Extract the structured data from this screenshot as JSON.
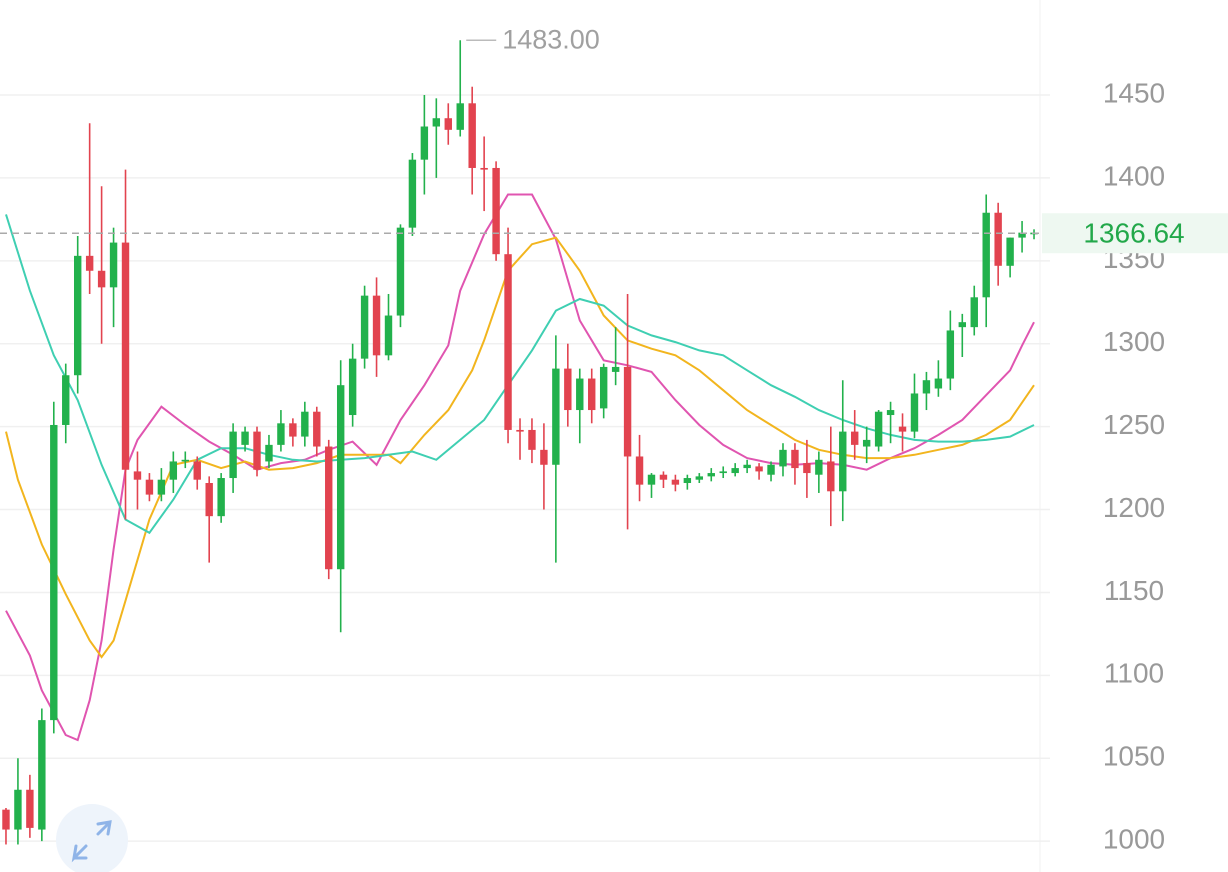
{
  "chart_data": {
    "type": "candlestick",
    "open": [
      1019,
      1007,
      1031,
      1007,
      1073,
      1251,
      1281,
      1353,
      1344,
      1334,
      1361,
      1223,
      1218,
      1209,
      1218,
      1229,
      1229,
      1216,
      1196,
      1219,
      1239,
      1247,
      1229,
      1239,
      1252,
      1244,
      1259,
      1238,
      1164,
      1257,
      1291,
      1329,
      1293,
      1317,
      1370,
      1411,
      1431,
      1436,
      1429,
      1445,
      1406,
      1406,
      1354,
      1248,
      1248,
      1236,
      1227,
      1285,
      1260,
      1279,
      1261,
      1283,
      1286,
      1232,
      1215,
      1221,
      1218,
      1216,
      1218,
      1220,
      1222,
      1222,
      1225,
      1226,
      1221,
      1226,
      1236,
      1228,
      1221,
      1229,
      1211,
      1247,
      1238,
      1238,
      1257,
      1250,
      1247,
      1270,
      1273,
      1279,
      1310,
      1310,
      1328,
      1379,
      1347,
      1364,
      1366
    ],
    "high": [
      1020,
      1050,
      1040,
      1080,
      1265,
      1288,
      1365,
      1433,
      1395,
      1370,
      1405,
      1235,
      1222,
      1225,
      1235,
      1235,
      1232,
      1220,
      1222,
      1252,
      1250,
      1250,
      1245,
      1260,
      1255,
      1265,
      1262,
      1242,
      1290,
      1300,
      1335,
      1340,
      1330,
      1372,
      1415,
      1450,
      1448,
      1445,
      1483,
      1455,
      1425,
      1410,
      1370,
      1255,
      1255,
      1252,
      1305,
      1300,
      1285,
      1285,
      1288,
      1310,
      1330,
      1245,
      1222,
      1223,
      1221,
      1221,
      1222,
      1225,
      1226,
      1228,
      1230,
      1228,
      1229,
      1240,
      1240,
      1242,
      1235,
      1250,
      1278,
      1260,
      1250,
      1260,
      1265,
      1258,
      1282,
      1283,
      1290,
      1320,
      1318,
      1335,
      1390,
      1385,
      1364,
      1374,
      1369
    ],
    "low": [
      998,
      998,
      1002,
      1000,
      1065,
      1240,
      1270,
      1330,
      1300,
      1310,
      1194,
      1200,
      1205,
      1205,
      1210,
      1225,
      1212,
      1168,
      1192,
      1210,
      1235,
      1220,
      1225,
      1235,
      1238,
      1238,
      1232,
      1158,
      1126,
      1250,
      1285,
      1280,
      1290,
      1310,
      1365,
      1390,
      1400,
      1420,
      1425,
      1390,
      1380,
      1350,
      1240,
      1230,
      1228,
      1200,
      1168,
      1250,
      1240,
      1252,
      1255,
      1275,
      1188,
      1205,
      1207,
      1213,
      1211,
      1212,
      1216,
      1217,
      1219,
      1220,
      1222,
      1218,
      1217,
      1220,
      1215,
      1207,
      1210,
      1190,
      1193,
      1230,
      1228,
      1235,
      1240,
      1235,
      1243,
      1260,
      1268,
      1272,
      1292,
      1305,
      1310,
      1335,
      1340,
      1355,
      1363
    ],
    "close": [
      1007,
      1031,
      1008,
      1073,
      1251,
      1281,
      1353,
      1344,
      1334,
      1361,
      1224,
      1218,
      1209,
      1218,
      1229,
      1230,
      1218,
      1196,
      1219,
      1247,
      1247,
      1224,
      1239,
      1252,
      1244,
      1259,
      1238,
      1164,
      1275,
      1291,
      1329,
      1293,
      1317,
      1370,
      1411,
      1431,
      1436,
      1429,
      1445,
      1406,
      1405,
      1354,
      1248,
      1247,
      1236,
      1227,
      1285,
      1260,
      1279,
      1260,
      1286,
      1286,
      1232,
      1215,
      1221,
      1218,
      1215,
      1219,
      1220,
      1222,
      1223,
      1225,
      1227,
      1223,
      1227,
      1236,
      1225,
      1222,
      1230,
      1211,
      1247,
      1239,
      1242,
      1259,
      1260,
      1247,
      1270,
      1278,
      1279,
      1308,
      1313,
      1328,
      1379,
      1347,
      1364,
      1367,
      1367
    ],
    "up_color": "#22b14c",
    "down_color": "#e2434f",
    "lines": [
      {
        "color": "#e055b0",
        "x": [
          0,
          2,
          3,
          5,
          6,
          7,
          8,
          9,
          10,
          11,
          13,
          15,
          17,
          19,
          21,
          23,
          25,
          27,
          29,
          31,
          33,
          35,
          37,
          38,
          40,
          42,
          44,
          46,
          48,
          50,
          52,
          54,
          56,
          58,
          60,
          62,
          64,
          66,
          68,
          70,
          72,
          74,
          76,
          78,
          80,
          82,
          84,
          85,
          86
        ],
        "values": [
          1139,
          1112,
          1091,
          1064,
          1061,
          1085,
          1121,
          1176,
          1224,
          1242,
          1262,
          1251,
          1241,
          1233,
          1224,
          1228,
          1230,
          1236,
          1241,
          1227,
          1254,
          1275,
          1299,
          1332,
          1366,
          1390,
          1390,
          1363,
          1314,
          1290,
          1287,
          1283,
          1266,
          1251,
          1239,
          1231,
          1228,
          1227,
          1228,
          1227,
          1224,
          1231,
          1237,
          1245,
          1254,
          1269,
          1284,
          1299,
          1313
        ]
      },
      {
        "color": "#f2b51e",
        "x": [
          0,
          1,
          3,
          5,
          7,
          8,
          9,
          10,
          12,
          14,
          16,
          18,
          20,
          22,
          24,
          26,
          28,
          30,
          32,
          33,
          35,
          37,
          39,
          40,
          42,
          44,
          46,
          48,
          50,
          52,
          54,
          56,
          58,
          60,
          62,
          64,
          66,
          68,
          70,
          72,
          74,
          76,
          78,
          80,
          82,
          84,
          86
        ],
        "values": [
          1247,
          1218,
          1179,
          1149,
          1121,
          1111,
          1121,
          1145,
          1194,
          1227,
          1230,
          1225,
          1229,
          1224,
          1225,
          1228,
          1233,
          1233,
          1233,
          1228,
          1245,
          1260,
          1284,
          1302,
          1344,
          1360,
          1364,
          1344,
          1317,
          1302,
          1297,
          1293,
          1284,
          1272,
          1260,
          1251,
          1242,
          1236,
          1233,
          1231,
          1231,
          1233,
          1236,
          1239,
          1245,
          1254,
          1275
        ]
      },
      {
        "color": "#3fcfb2",
        "x": [
          0,
          2,
          4,
          6,
          8,
          10,
          12,
          14,
          16,
          18,
          20,
          22,
          24,
          26,
          28,
          30,
          32,
          34,
          36,
          38,
          40,
          42,
          44,
          46,
          48,
          50,
          52,
          54,
          56,
          58,
          60,
          62,
          64,
          66,
          68,
          70,
          72,
          74,
          76,
          78,
          80,
          82,
          84,
          86
        ],
        "values": [
          1378,
          1332,
          1293,
          1266,
          1227,
          1194,
          1186,
          1206,
          1230,
          1237,
          1237,
          1233,
          1230,
          1229,
          1230,
          1231,
          1233,
          1235,
          1230,
          1242,
          1254,
          1275,
          1296,
          1320,
          1327,
          1323,
          1311,
          1305,
          1301,
          1296,
          1293,
          1284,
          1275,
          1268,
          1260,
          1254,
          1249,
          1245,
          1242,
          1241,
          1241,
          1242,
          1244,
          1251
        ]
      }
    ],
    "ylim": [
      981.4,
      1507.3
    ],
    "yticks": [
      1000,
      1050,
      1100,
      1150,
      1200,
      1250,
      1300,
      1350,
      1400,
      1450
    ],
    "grid": true,
    "high_label": {
      "value": 1483,
      "label": "1483.00"
    },
    "last_price": {
      "value": 1366.64,
      "label": "1366.64"
    }
  }
}
